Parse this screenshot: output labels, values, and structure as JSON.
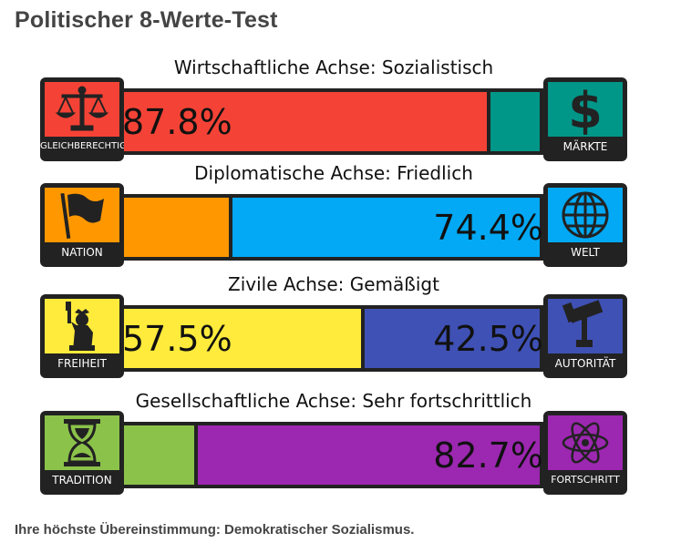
{
  "page": {
    "title": "Politischer 8-Werte-Test",
    "result": "Ihre höchste Übereinstimmung: Demokratischer Sozialismus."
  },
  "axes": [
    {
      "label": "Wirtschaftliche Achse: Sozialistisch",
      "left": {
        "caption": "GLEICHBERECHTIGUNG",
        "icon": "scales-icon",
        "color": "#f44336",
        "percent": 87.8,
        "percent_text": "87.8%"
      },
      "right": {
        "caption": "MÄRKTE",
        "icon": "dollar-icon",
        "color": "#009688",
        "percent": 12.2,
        "percent_text": ""
      }
    },
    {
      "label": "Diplomatische Achse: Friedlich",
      "left": {
        "caption": "NATION",
        "icon": "flag-icon",
        "color": "#ff9800",
        "percent": 25.6,
        "percent_text": ""
      },
      "right": {
        "caption": "WELT",
        "icon": "globe-icon",
        "color": "#03a9f4",
        "percent": 74.4,
        "percent_text": "74.4%"
      }
    },
    {
      "label": "Zivile Achse: Gemäßigt",
      "left": {
        "caption": "FREIHEIT",
        "icon": "statue-of-liberty-icon",
        "color": "#ffeb3b",
        "percent": 57.5,
        "percent_text": "57.5%"
      },
      "right": {
        "caption": "AUTORITÄT",
        "icon": "gavel-icon",
        "color": "#3f51b5",
        "percent": 42.5,
        "percent_text": "42.5%"
      }
    },
    {
      "label": "Gesellschaftliche Achse: Sehr fortschrittlich",
      "left": {
        "caption": "TRADITION",
        "icon": "hourglass-icon",
        "color": "#8bc34a",
        "percent": 17.3,
        "percent_text": ""
      },
      "right": {
        "caption": "FORTSCHRITT",
        "icon": "atom-icon",
        "color": "#9c27b0",
        "percent": 82.7,
        "percent_text": "82.7%"
      }
    }
  ]
}
